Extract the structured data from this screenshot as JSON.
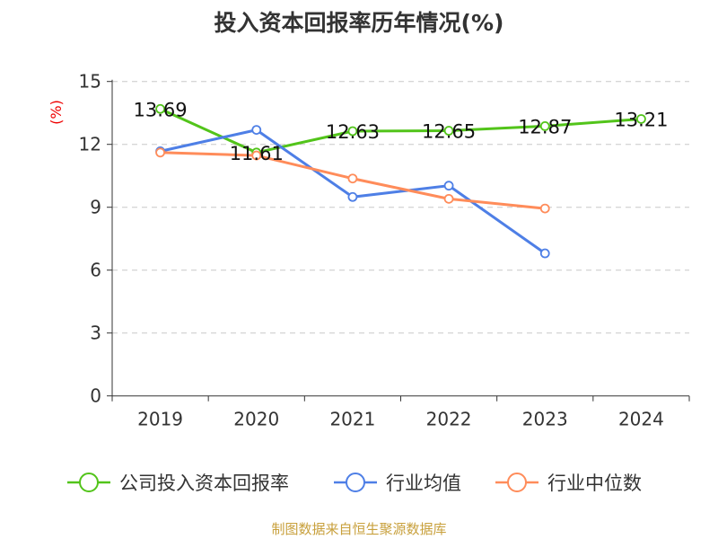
{
  "chart_data": {
    "type": "line",
    "title": "投入资本回报率历年情况(%)",
    "ylabel": "(%)",
    "categories": [
      "2019",
      "2020",
      "2021",
      "2022",
      "2023",
      "2024"
    ],
    "ylim": [
      0,
      15
    ],
    "yticks": [
      0,
      3,
      6,
      9,
      12,
      15
    ],
    "grid": true,
    "legend_position": "bottom",
    "series": [
      {
        "name": "公司投入资本回报率",
        "color": "#52c41a",
        "values": [
          13.69,
          11.61,
          12.63,
          12.65,
          12.87,
          13.21
        ],
        "labels": [
          "13.69",
          "11.61",
          "12.63",
          "12.65",
          "12.87",
          "13.21"
        ]
      },
      {
        "name": "行业均值",
        "color": "#4e7fe6",
        "values": [
          11.67,
          12.69,
          9.49,
          10.03,
          6.8,
          null
        ]
      },
      {
        "name": "行业中位数",
        "color": "#ff8c5a",
        "values": [
          11.61,
          11.47,
          10.37,
          9.4,
          8.94,
          null
        ]
      }
    ]
  },
  "source": "制图数据来自恒生聚源数据库"
}
